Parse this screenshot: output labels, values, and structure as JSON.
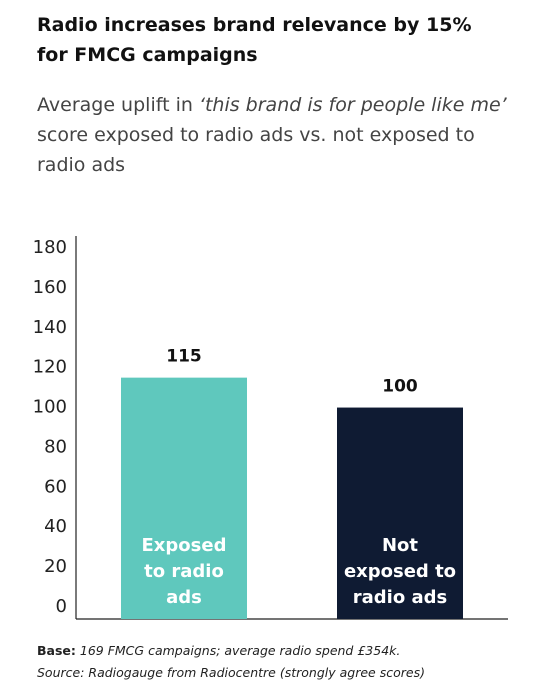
{
  "chart_data": {
    "type": "bar",
    "title": "Radio increases brand relevance by 15% for FMCG campaigns",
    "subtitle": [
      "Average uplift in ",
      "‘this brand is for people like me’",
      " score exposed to radio ads vs. not exposed to radio ads"
    ],
    "categories": [
      "Exposed\nto radio\nads",
      "Not\nexposed to\nradio ads"
    ],
    "values": [
      115,
      100
    ],
    "colors": [
      "#5fc8bd",
      "#0f1b33"
    ],
    "ylim": [
      0,
      180
    ],
    "yticks": [
      0,
      20,
      40,
      60,
      80,
      100,
      120,
      140,
      160,
      180
    ],
    "grid": false,
    "footnote": {
      "base_label": "Base:",
      "base_text": "169 FMCG campaigns; average radio spend £354k.",
      "source": "Source: Radiogauge from Radiocentre (strongly agree scores)"
    }
  }
}
